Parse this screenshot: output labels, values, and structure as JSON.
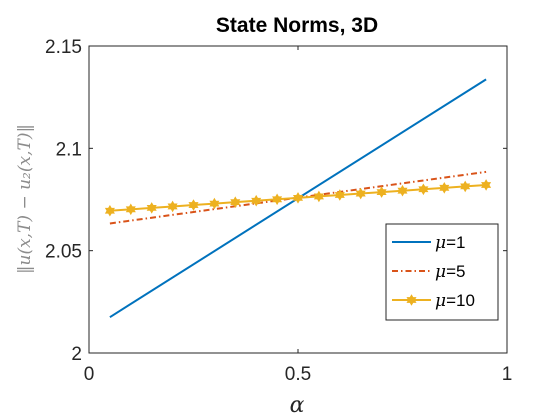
{
  "chart_data": {
    "type": "line",
    "title": "State Norms, 3D",
    "xlabel": "α",
    "ylabel": "‖u(x,T) − u₂(x,T)‖",
    "xlim": [
      0,
      1
    ],
    "ylim": [
      2,
      2.15
    ],
    "x_ticks": [
      "0",
      "0.5",
      "1"
    ],
    "y_ticks": [
      "2",
      "2.05",
      "2.1",
      "2.15"
    ],
    "grid": false,
    "legend_position": "bottom-right",
    "series": [
      {
        "name": "μ=1",
        "legend_symbol": "μ",
        "legend_value": "=1",
        "color": "#0072BD",
        "style": "solid",
        "marker": "none",
        "x": [
          0.05,
          0.95
        ],
        "y": [
          2.0175,
          2.1337
        ]
      },
      {
        "name": "μ=5",
        "legend_symbol": "μ",
        "legend_value": "=5",
        "color": "#D95319",
        "style": "dash-dot",
        "marker": "none",
        "x": [
          0.05,
          0.95
        ],
        "y": [
          2.0633,
          2.0885
        ]
      },
      {
        "name": "μ=10",
        "legend_symbol": "μ",
        "legend_value": "=10",
        "color": "#EDB120",
        "style": "solid",
        "marker": "hexagram",
        "x": [
          0.05,
          0.1,
          0.15,
          0.2,
          0.25,
          0.3,
          0.35,
          0.4,
          0.45,
          0.5,
          0.55,
          0.6,
          0.65,
          0.7,
          0.75,
          0.8,
          0.85,
          0.9,
          0.95
        ],
        "y": [
          2.0695,
          2.0702,
          2.0709,
          2.0716,
          2.0723,
          2.073,
          2.0737,
          2.0744,
          2.0751,
          2.0758,
          2.0765,
          2.0772,
          2.0779,
          2.0786,
          2.0793,
          2.08,
          2.0807,
          2.0814,
          2.0821
        ]
      }
    ]
  }
}
